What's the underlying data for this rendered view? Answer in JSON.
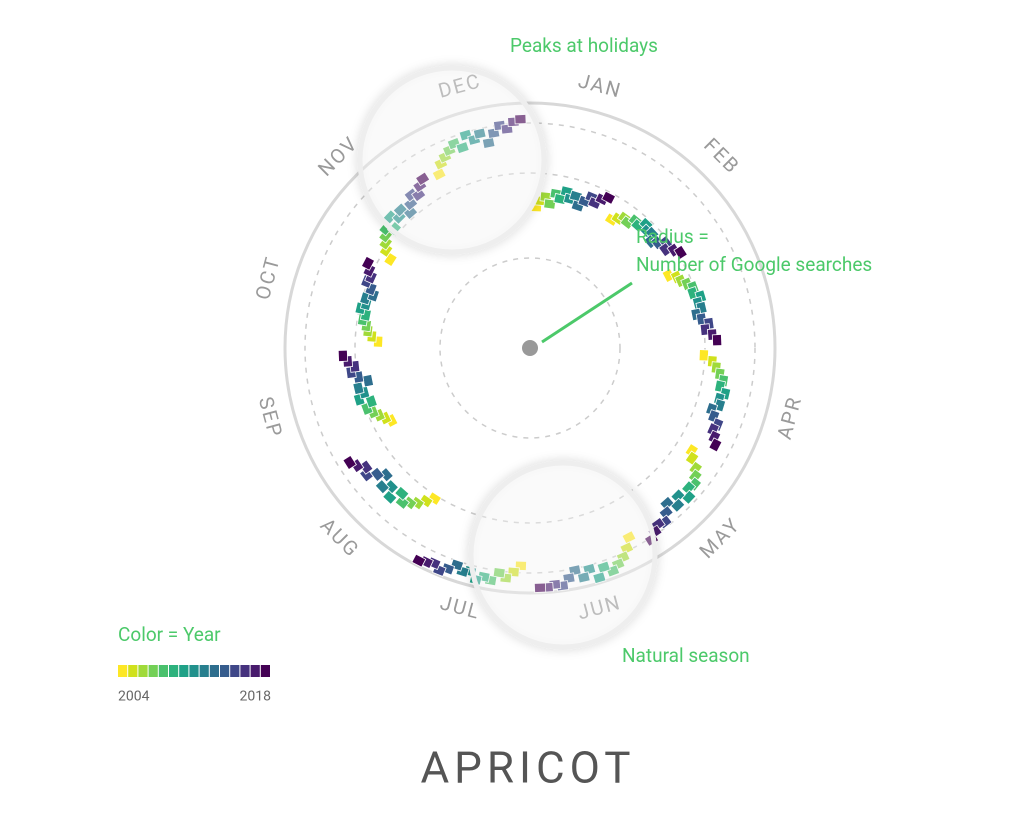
{
  "chart_data": {
    "type": "radial",
    "title": "APRICOT",
    "categories": [
      "JAN",
      "FEB",
      null,
      "APR",
      "MAY",
      "JUN",
      "JUL",
      "AUG",
      "SEP",
      "OCT",
      "NOV",
      "DEC"
    ],
    "annotations": [
      "Peaks at holidays",
      "Radius =",
      "Number of Google searches",
      "Natural season"
    ],
    "legend_title": "Color = Year",
    "legend_labels": [
      "2004",
      "2018"
    ],
    "rlim": [
      0,
      100
    ],
    "series": [
      {
        "color": "#fde725",
        "values": [
          55,
          60,
          62,
          70,
          78,
          88,
          90,
          72,
          62,
          60,
          66,
          80
        ]
      },
      {
        "color": "#d0e11c",
        "values": [
          58,
          62,
          65,
          74,
          80,
          92,
          93,
          75,
          64,
          63,
          70,
          84
        ]
      },
      {
        "color": "#a0da39",
        "values": [
          60,
          64,
          66,
          76,
          84,
          95,
          96,
          78,
          66,
          65,
          72,
          86
        ]
      },
      {
        "color": "#73d056",
        "values": [
          57,
          63,
          68,
          78,
          86,
          97,
          94,
          80,
          68,
          66,
          74,
          88
        ]
      },
      {
        "color": "#4ac16d",
        "values": [
          62,
          66,
          70,
          80,
          88,
          99,
          98,
          82,
          70,
          68,
          76,
          90
        ]
      },
      {
        "color": "#2db27d",
        "values": [
          60,
          65,
          69,
          79,
          87,
          96,
          97,
          79,
          67,
          67,
          73,
          87
        ]
      },
      {
        "color": "#1fa187",
        "values": [
          64,
          68,
          72,
          82,
          90,
          100,
          99,
          84,
          72,
          70,
          78,
          92
        ]
      },
      {
        "color": "#21918c",
        "values": [
          61,
          66,
          70,
          80,
          86,
          95,
          96,
          80,
          69,
          68,
          75,
          89
        ]
      },
      {
        "color": "#277f8e",
        "values": [
          63,
          67,
          71,
          81,
          89,
          98,
          97,
          83,
          71,
          69,
          77,
          91
        ]
      },
      {
        "color": "#2e6e8e",
        "values": [
          59,
          64,
          68,
          78,
          85,
          94,
          95,
          78,
          66,
          66,
          73,
          86
        ]
      },
      {
        "color": "#365c8d",
        "values": [
          62,
          66,
          70,
          80,
          88,
          97,
          98,
          81,
          70,
          68,
          76,
          90
        ]
      },
      {
        "color": "#3f4788",
        "values": [
          65,
          69,
          73,
          83,
          91,
          100,
          100,
          85,
          73,
          71,
          79,
          93
        ]
      },
      {
        "color": "#46327e",
        "values": [
          63,
          67,
          71,
          82,
          90,
          99,
          98,
          83,
          71,
          70,
          77,
          91
        ]
      },
      {
        "color": "#481b6d",
        "values": [
          66,
          70,
          74,
          84,
          92,
          100,
          99,
          86,
          74,
          72,
          80,
          94
        ]
      },
      {
        "color": "#440154",
        "values": [
          68,
          72,
          76,
          86,
          94,
          100,
          100,
          88,
          76,
          74,
          82,
          95
        ]
      }
    ]
  }
}
